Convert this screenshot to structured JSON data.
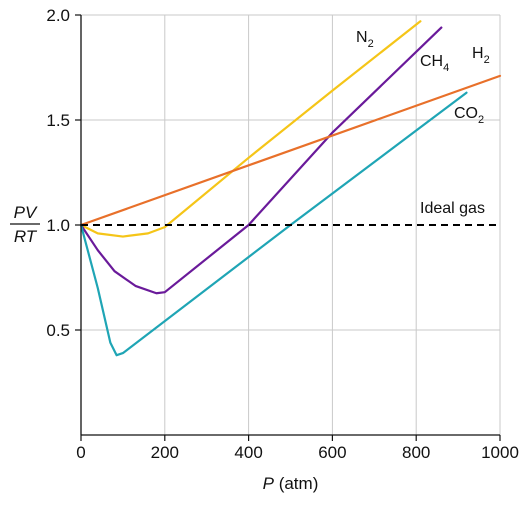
{
  "chart_data": {
    "type": "line",
    "xlabel": {
      "var": "P",
      "unit": " (atm)"
    },
    "ylabel": {
      "numerator": "PV",
      "denominator": "RT"
    },
    "xlim": [
      0,
      1000
    ],
    "ylim": [
      0,
      2.0
    ],
    "xticks": [
      0,
      200,
      400,
      600,
      800,
      1000
    ],
    "yticks": [
      0.5,
      1.0,
      1.5,
      2.0
    ],
    "x_tick_labels": [
      "0",
      "200",
      "400",
      "600",
      "800",
      "1000"
    ],
    "y_tick_labels": [
      "0.5",
      "1.0",
      "1.5",
      "2.0"
    ],
    "grid": true,
    "series": [
      {
        "name": "N",
        "sub": "2",
        "color": "#f5c518",
        "style": "solid",
        "points": [
          [
            0,
            1.0
          ],
          [
            40,
            0.96
          ],
          [
            100,
            0.945
          ],
          [
            160,
            0.96
          ],
          [
            200,
            0.99
          ],
          [
            400,
            1.32
          ],
          [
            600,
            1.64
          ],
          [
            810,
            1.97
          ]
        ]
      },
      {
        "name": "CH",
        "sub": "4",
        "color": "#6a1a9a",
        "style": "solid",
        "points": [
          [
            0,
            1.0
          ],
          [
            40,
            0.88
          ],
          [
            80,
            0.78
          ],
          [
            130,
            0.71
          ],
          [
            180,
            0.675
          ],
          [
            200,
            0.68
          ],
          [
            400,
            1.0
          ],
          [
            600,
            1.44
          ],
          [
            860,
            1.94
          ]
        ]
      },
      {
        "name": "H",
        "sub": "2",
        "color": "#e8702a",
        "style": "solid",
        "points": [
          [
            0,
            1.0
          ],
          [
            1000,
            1.71
          ]
        ]
      },
      {
        "name": "CO",
        "sub": "2",
        "color": "#1fa5b5",
        "style": "solid",
        "points": [
          [
            0,
            1.0
          ],
          [
            40,
            0.7
          ],
          [
            70,
            0.44
          ],
          [
            85,
            0.38
          ],
          [
            100,
            0.39
          ],
          [
            500,
            1.0
          ],
          [
            920,
            1.63
          ]
        ]
      },
      {
        "name": "Ideal gas",
        "sub": "",
        "color": "#000000",
        "style": "dashed",
        "points": [
          [
            0,
            1.0
          ],
          [
            1000,
            1.0
          ]
        ]
      }
    ]
  }
}
